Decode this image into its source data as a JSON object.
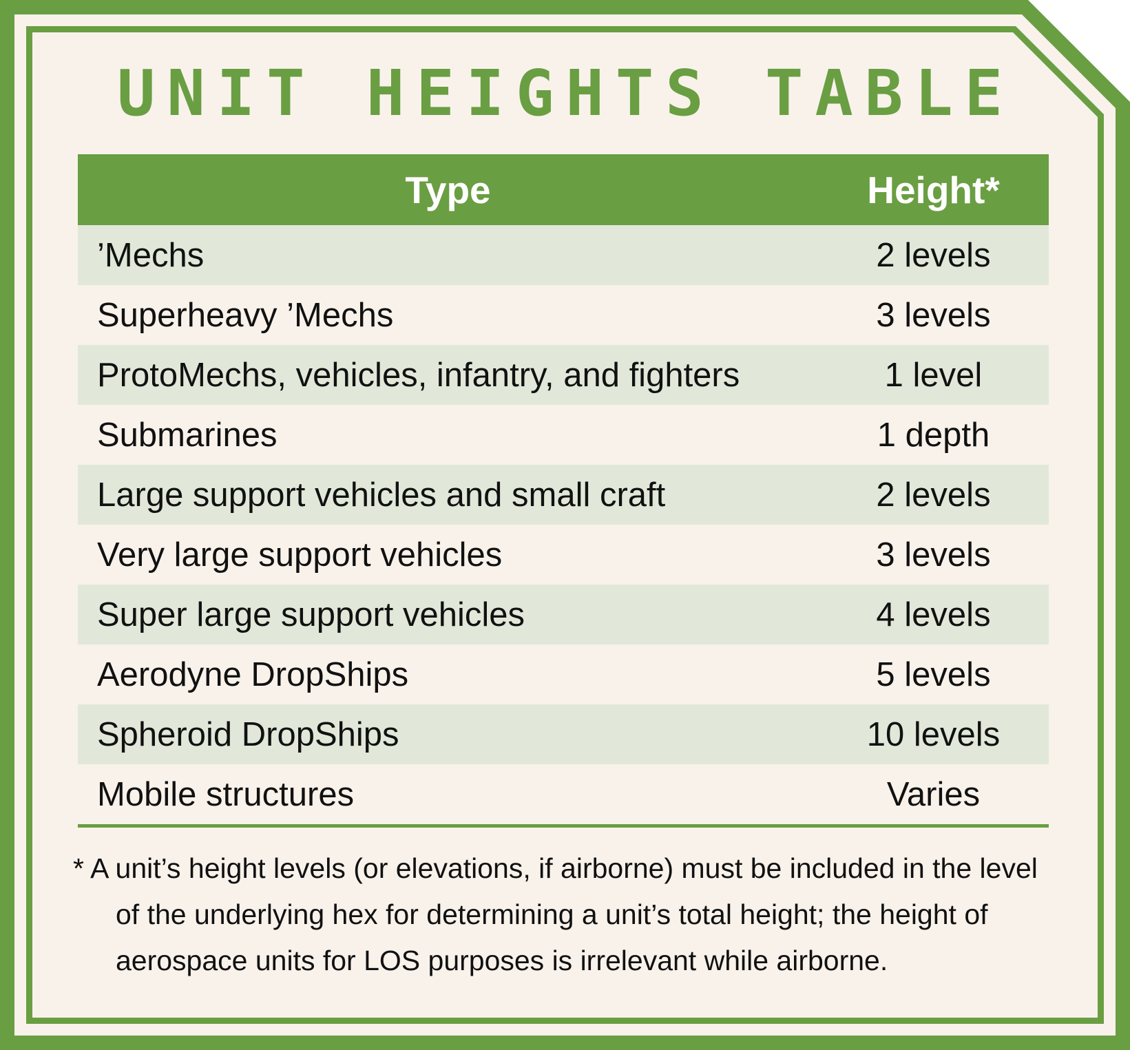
{
  "colors": {
    "accent_green": "#6a9e42",
    "panel_background": "#f8f2eb",
    "stripe_row": "#e1e8d9",
    "text": "#111111",
    "header_text": "#ffffff"
  },
  "title": "UNIT HEIGHTS TABLE",
  "table": {
    "headers": {
      "type": "Type",
      "height": "Height*"
    },
    "rows": [
      {
        "type": "’Mechs",
        "height": "2 levels"
      },
      {
        "type": "Superheavy ’Mechs",
        "height": "3 levels"
      },
      {
        "type": "ProtoMechs, vehicles, infantry, and fighters",
        "height": "1 level"
      },
      {
        "type": "Submarines",
        "height": "1 depth"
      },
      {
        "type": "Large support vehicles and small craft",
        "height": "2 levels"
      },
      {
        "type": "Very large support vehicles",
        "height": "3 levels"
      },
      {
        "type": "Super large support vehicles",
        "height": "4 levels"
      },
      {
        "type": "Aerodyne DropShips",
        "height": "5 levels"
      },
      {
        "type": "Spheroid DropShips",
        "height": "10 levels"
      },
      {
        "type": "Mobile structures",
        "height": "Varies"
      }
    ]
  },
  "footnote": "* A unit’s height levels (or elevations, if airborne) must be included in the level of the underlying hex for determining a unit’s total height; the height of aerospace units for LOS purposes is irrelevant while airborne."
}
